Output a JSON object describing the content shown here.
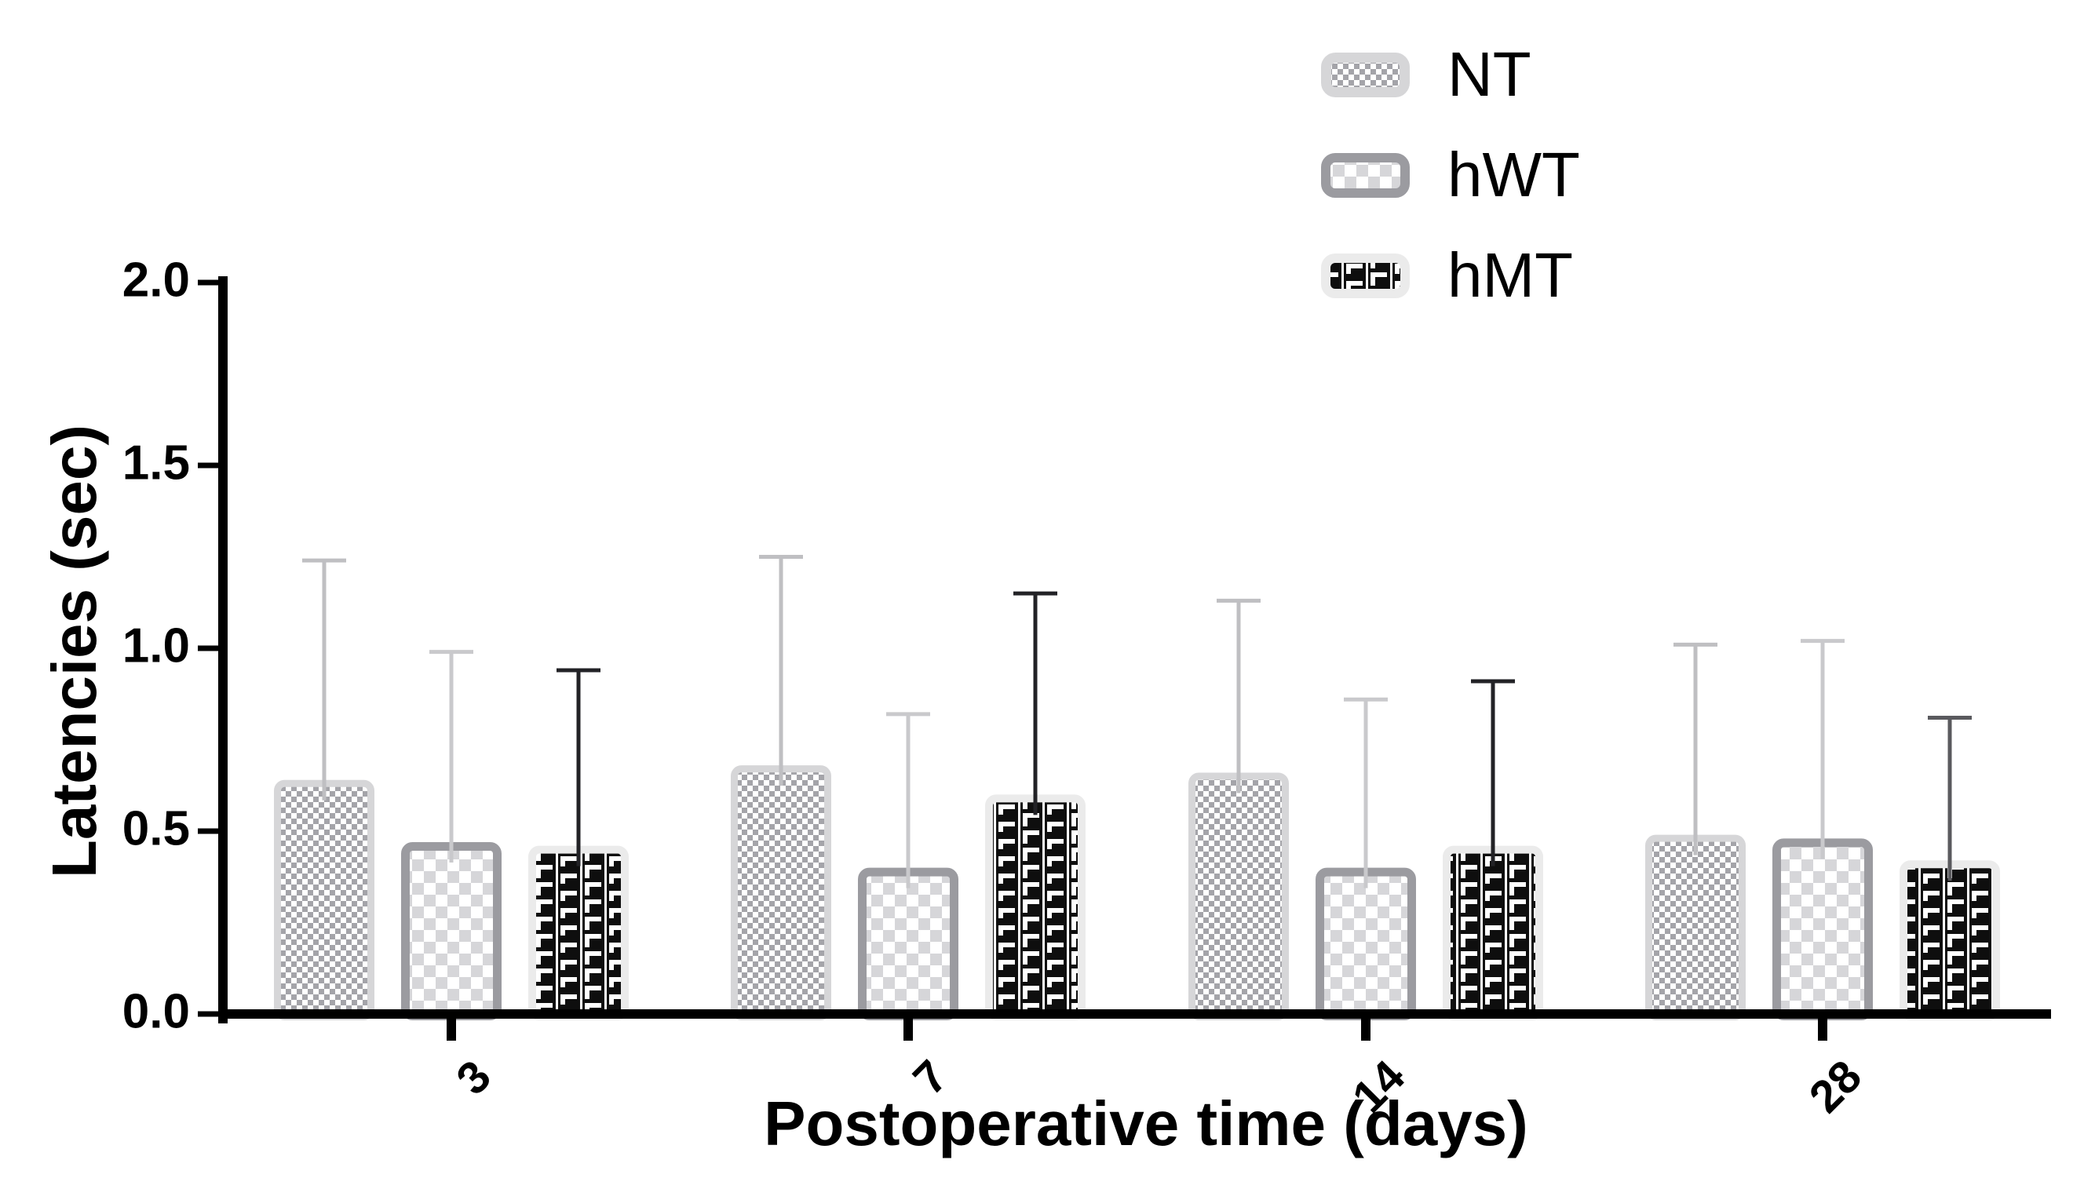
{
  "chart_data": {
    "type": "bar",
    "title": "",
    "xlabel": "Postoperative time (days)",
    "ylabel": "Latencies (sec)",
    "categories": [
      "3",
      "7",
      "14",
      "28"
    ],
    "y_ticks": [
      "0.0",
      "0.5",
      "1.0",
      "1.5",
      "2.0"
    ],
    "y_tick_values": [
      0,
      0.5,
      1,
      1.5,
      2
    ],
    "ylim": [
      0,
      2.0
    ],
    "grid": false,
    "error_bars": "upper-sd",
    "legend_position": "top-right",
    "axis_color": "#000000",
    "background_color": "#ffffff",
    "series": [
      {
        "name": "NT",
        "pattern": "fine-checker",
        "values": [
          0.64,
          0.68,
          0.66,
          0.49
        ],
        "errors": [
          0.6,
          0.57,
          0.47,
          0.52
        ],
        "colors": {
          "border": "#d6d6d8",
          "pattern_fg": "#a4a4a9",
          "pattern_bg": "#ffffff",
          "error": "#bfbfc2"
        }
      },
      {
        "name": "hWT",
        "pattern": "coarse-checker",
        "values": [
          0.47,
          0.4,
          0.4,
          0.48
        ],
        "errors": [
          0.52,
          0.42,
          0.46,
          0.54
        ],
        "colors": {
          "border": "#9b9ba0",
          "pattern_fg": "#d6d6d9",
          "pattern_bg": "#ffffff",
          "error": "#c9c9cc"
        }
      },
      {
        "name": "hMT",
        "pattern": "black-weave",
        "values": [
          0.46,
          0.6,
          0.46,
          0.42
        ],
        "errors": [
          0.48,
          0.55,
          0.45,
          0.39
        ],
        "colors": {
          "border": "#ebebeb",
          "pattern_fg": "#ffffff",
          "pattern_bg": "#0e0e0e",
          "error": "#28282c"
        },
        "error_colors": [
          "#222226",
          "#222226",
          "#222226",
          "#5a5a5e"
        ]
      }
    ]
  }
}
